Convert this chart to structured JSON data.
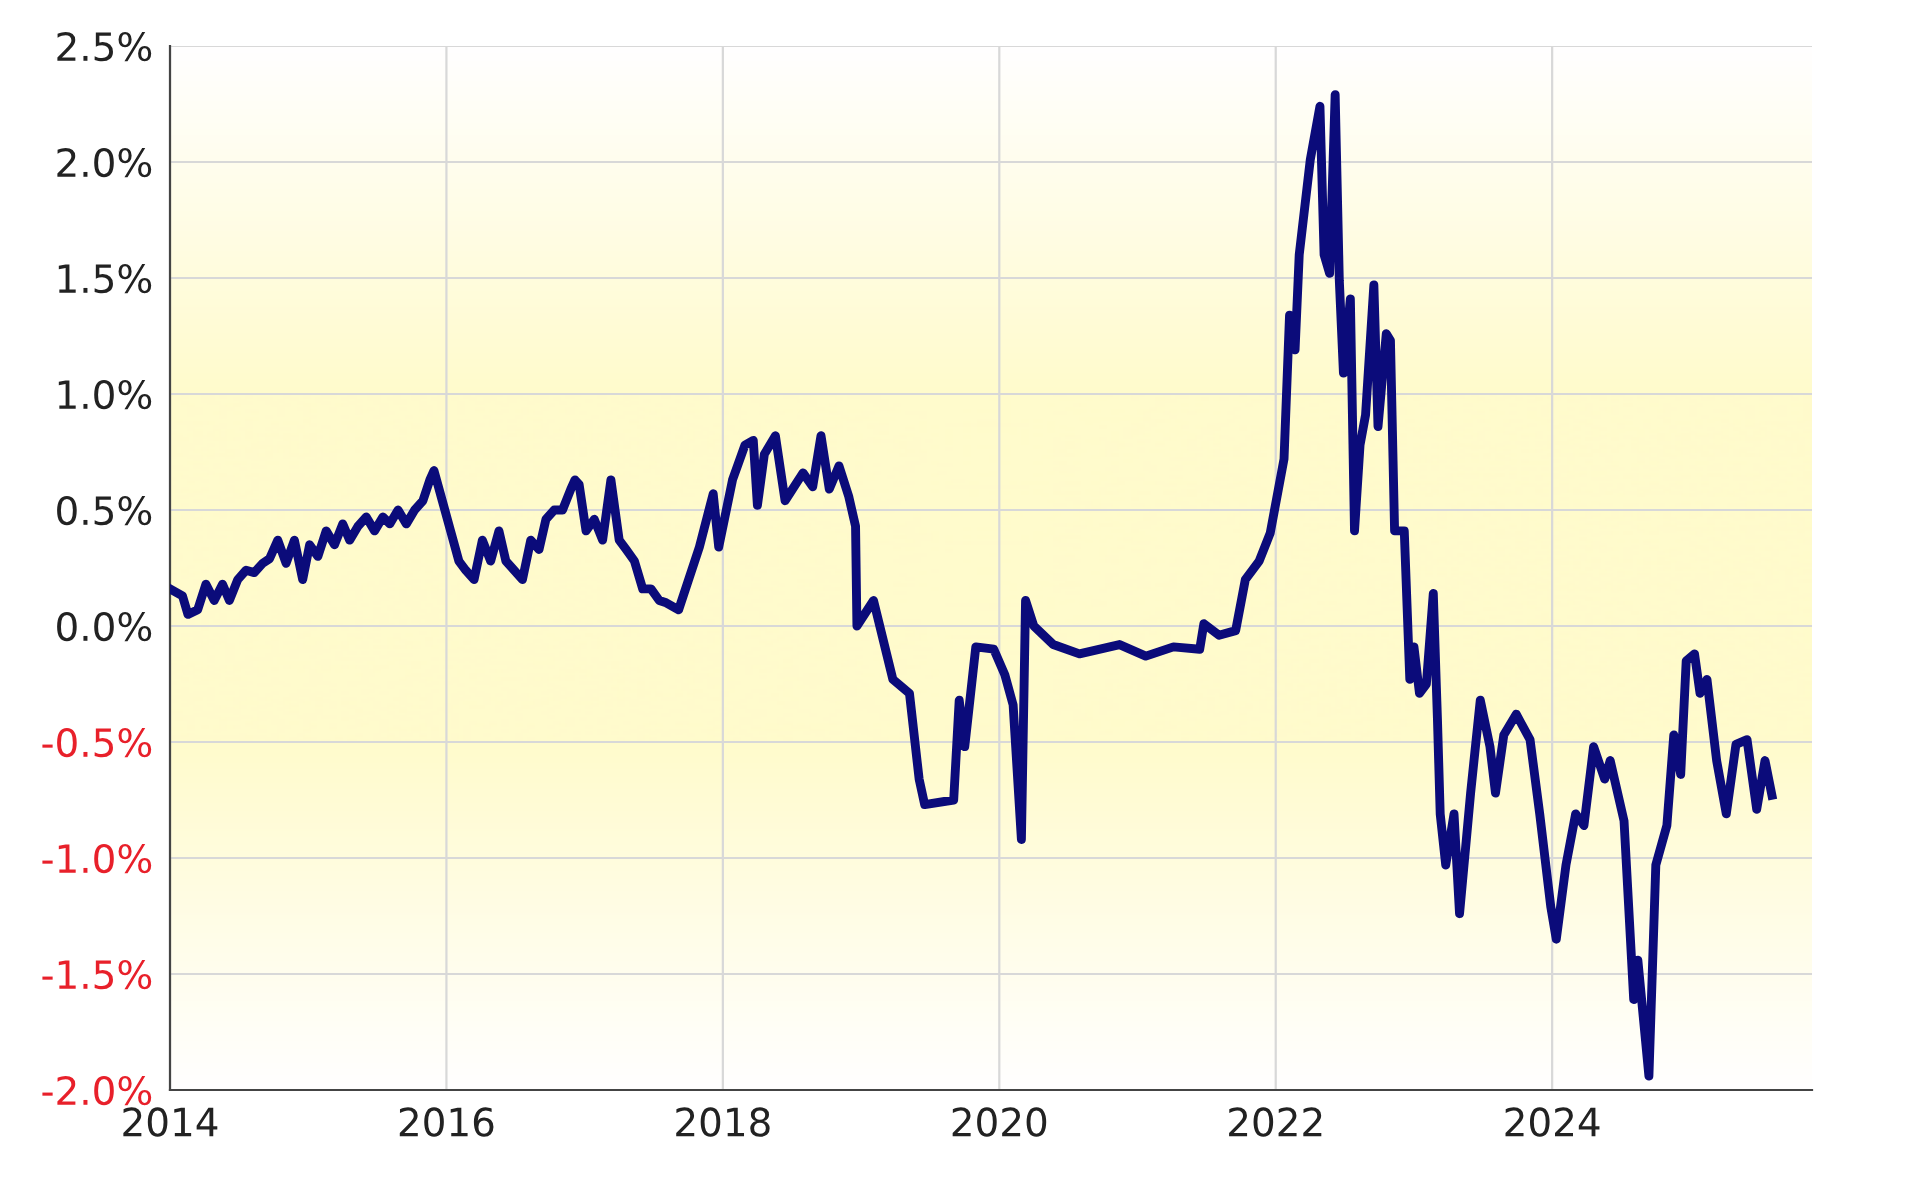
{
  "chart_data": {
    "type": "line",
    "x": [
      2014.0,
      2014.09,
      2014.13,
      2014.2,
      2014.26,
      2014.32,
      2014.38,
      2014.43,
      2014.49,
      2014.55,
      2014.61,
      2014.67,
      2014.72,
      2014.78,
      2014.84,
      2014.9,
      2014.96,
      2015.01,
      2015.07,
      2015.13,
      2015.19,
      2015.25,
      2015.3,
      2015.36,
      2015.42,
      2015.48,
      2015.54,
      2015.59,
      2015.65,
      2015.71,
      2015.77,
      2015.83,
      2015.88,
      2015.91,
      2015.97,
      2016.03,
      2016.09,
      2016.14,
      2016.2,
      2016.26,
      2016.32,
      2016.38,
      2016.43,
      2016.49,
      2016.55,
      2016.61,
      2016.67,
      2016.72,
      2016.78,
      2016.84,
      2016.9,
      2016.93,
      2016.96,
      2017.01,
      2017.07,
      2017.13,
      2017.19,
      2017.25,
      2017.3,
      2017.36,
      2017.42,
      2017.48,
      2017.54,
      2017.59,
      2017.68,
      2017.83,
      2017.93,
      2017.97,
      2018.07,
      2018.16,
      2018.22,
      2018.25,
      2018.3,
      2018.38,
      2018.45,
      2018.58,
      2018.65,
      2018.71,
      2018.77,
      2018.84,
      2018.91,
      2018.96,
      2018.97,
      2019.09,
      2019.23,
      2019.35,
      2019.42,
      2019.46,
      2019.67,
      2019.71,
      2019.75,
      2019.83,
      2019.96,
      2020.04,
      2020.1,
      2020.16,
      2020.19,
      2020.25,
      2020.39,
      2020.58,
      2020.87,
      2021.06,
      2021.26,
      2021.45,
      2021.48,
      2021.59,
      2021.71,
      2021.78,
      2021.88,
      2021.96,
      2022.06,
      2022.1,
      2022.14,
      2022.17,
      2022.25,
      2022.32,
      2022.35,
      2022.39,
      2022.43,
      2022.46,
      2022.49,
      2022.54,
      2022.57,
      2022.61,
      2022.65,
      2022.71,
      2022.74,
      2022.8,
      2022.83,
      2022.86,
      2022.93,
      2022.97,
      2023.0,
      2023.04,
      2023.09,
      2023.14,
      2023.17,
      2023.19,
      2023.23,
      2023.29,
      2023.33,
      2023.41,
      2023.48,
      2023.55,
      2023.59,
      2023.65,
      2023.74,
      2023.84,
      2023.91,
      2023.99,
      2024.03,
      2024.1,
      2024.17,
      2024.23,
      2024.3,
      2024.38,
      2024.42,
      2024.52,
      2024.59,
      2024.62,
      2024.7,
      2024.75,
      2024.83,
      2024.88,
      2024.93,
      2024.97,
      2025.03,
      2025.07,
      2025.12,
      2025.19,
      2025.26,
      2025.33,
      2025.41,
      2025.48,
      2025.54,
      2025.59
    ],
    "values": [
      0.16,
      0.13,
      0.05,
      0.07,
      0.18,
      0.11,
      0.18,
      0.11,
      0.2,
      0.24,
      0.23,
      0.27,
      0.29,
      0.37,
      0.27,
      0.37,
      0.2,
      0.35,
      0.3,
      0.41,
      0.35,
      0.44,
      0.37,
      0.43,
      0.47,
      0.41,
      0.47,
      0.44,
      0.5,
      0.44,
      0.5,
      0.54,
      0.63,
      0.67,
      0.54,
      0.41,
      0.28,
      0.24,
      0.2,
      0.37,
      0.28,
      0.41,
      0.28,
      0.24,
      0.2,
      0.37,
      0.33,
      0.46,
      0.5,
      0.5,
      0.59,
      0.63,
      0.61,
      0.41,
      0.46,
      0.37,
      0.63,
      0.37,
      0.33,
      0.28,
      0.16,
      0.16,
      0.11,
      0.1,
      0.07,
      0.34,
      0.57,
      0.34,
      0.63,
      0.78,
      0.8,
      0.52,
      0.74,
      0.82,
      0.54,
      0.66,
      0.6,
      0.82,
      0.59,
      0.69,
      0.56,
      0.43,
      0.0,
      0.11,
      -0.23,
      -0.29,
      -0.66,
      -0.77,
      -0.75,
      -0.32,
      -0.52,
      -0.09,
      -0.1,
      -0.21,
      -0.34,
      -0.92,
      0.11,
      0.0,
      -0.08,
      -0.12,
      -0.08,
      -0.13,
      -0.09,
      -0.1,
      0.01,
      -0.04,
      -0.02,
      0.2,
      0.28,
      0.4,
      0.72,
      1.34,
      1.19,
      1.6,
      2.01,
      2.24,
      1.6,
      1.52,
      2.29,
      1.49,
      1.09,
      1.41,
      0.41,
      0.78,
      0.91,
      1.47,
      0.86,
      1.26,
      1.23,
      0.41,
      0.41,
      -0.23,
      -0.09,
      -0.29,
      -0.25,
      0.14,
      -0.4,
      -0.81,
      -1.03,
      -0.81,
      -1.24,
      -0.72,
      -0.32,
      -0.52,
      -0.72,
      -0.47,
      -0.38,
      -0.49,
      -0.81,
      -1.21,
      -1.35,
      -1.03,
      -0.81,
      -0.86,
      -0.52,
      -0.66,
      -0.58,
      -0.84,
      -1.61,
      -1.44,
      -1.94,
      -1.03,
      -0.86,
      -0.47,
      -0.64,
      -0.15,
      -0.12,
      -0.29,
      -0.23,
      -0.58,
      -0.81,
      -0.51,
      -0.49,
      -0.79,
      -0.58,
      -0.73
    ],
    "color": "#0b0b7a",
    "xlim": [
      2014,
      2025.88
    ],
    "xticks": [
      2014,
      2016,
      2018,
      2020,
      2022,
      2024
    ],
    "ylim": [
      -2.0,
      2.5
    ],
    "yticks": [
      {
        "value": -2.0,
        "label": "-2.0%"
      },
      {
        "value": -1.5,
        "label": "-1.5%"
      },
      {
        "value": -1.0,
        "label": "-1.0%"
      },
      {
        "value": -0.5,
        "label": "-0.5%"
      },
      {
        "value": 0.0,
        "label": "0.0%"
      },
      {
        "value": 0.5,
        "label": "0.5%"
      },
      {
        "value": 1.0,
        "label": "1.0%"
      },
      {
        "value": 1.5,
        "label": "1.5%"
      },
      {
        "value": 2.0,
        "label": "2.0%"
      },
      {
        "value": 2.5,
        "label": "2.5%"
      }
    ],
    "grid": true,
    "line_style": "solid",
    "marker": "none"
  }
}
